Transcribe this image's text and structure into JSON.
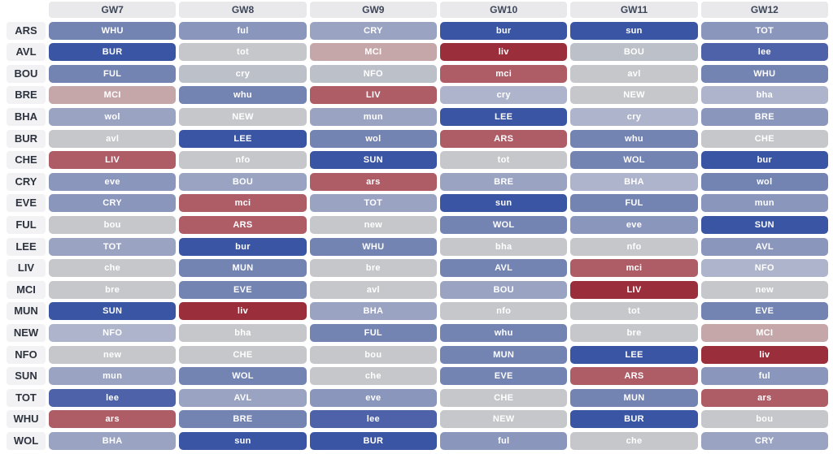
{
  "chart_data": {
    "type": "heatmap",
    "title": "",
    "columns": [
      "GW7",
      "GW8",
      "GW9",
      "GW10",
      "GW11",
      "GW12"
    ],
    "rows": [
      "ARS",
      "AVL",
      "BOU",
      "BRE",
      "BHA",
      "BUR",
      "CHE",
      "CRY",
      "EVE",
      "FUL",
      "LEE",
      "LIV",
      "MCI",
      "MUN",
      "NEW",
      "NFO",
      "SUN",
      "TOT",
      "WHU",
      "WOL"
    ],
    "palette": {
      "b1": "#3a55a3",
      "b2": "#4d62a8",
      "b3": "#7383b2",
      "b4": "#8b96bc",
      "b5": "#9aa4c2",
      "b6": "#aeb4cb",
      "b7": "#bcc0c9",
      "g": "#c6c7ca",
      "p": "#c5a7a9",
      "r2": "#ae5d67",
      "r1": "#9b2e3b"
    },
    "header_bg": "#e9e9ec",
    "label_bg": "#f2f2f4",
    "cells": [
      {
        "team": "ARS",
        "fixtures": [
          {
            "opp": "WHU",
            "difficulty": "b3"
          },
          {
            "opp": "ful",
            "difficulty": "b4"
          },
          {
            "opp": "CRY",
            "difficulty": "b5"
          },
          {
            "opp": "bur",
            "difficulty": "b1"
          },
          {
            "opp": "sun",
            "difficulty": "b1"
          },
          {
            "opp": "TOT",
            "difficulty": "b4"
          }
        ]
      },
      {
        "team": "AVL",
        "fixtures": [
          {
            "opp": "BUR",
            "difficulty": "b1"
          },
          {
            "opp": "tot",
            "difficulty": "g"
          },
          {
            "opp": "MCI",
            "difficulty": "p"
          },
          {
            "opp": "liv",
            "difficulty": "r1"
          },
          {
            "opp": "BOU",
            "difficulty": "b7"
          },
          {
            "opp": "lee",
            "difficulty": "b2"
          }
        ]
      },
      {
        "team": "BOU",
        "fixtures": [
          {
            "opp": "FUL",
            "difficulty": "b3"
          },
          {
            "opp": "cry",
            "difficulty": "b7"
          },
          {
            "opp": "NFO",
            "difficulty": "b7"
          },
          {
            "opp": "mci",
            "difficulty": "r2"
          },
          {
            "opp": "avl",
            "difficulty": "g"
          },
          {
            "opp": "WHU",
            "difficulty": "b3"
          }
        ]
      },
      {
        "team": "BRE",
        "fixtures": [
          {
            "opp": "MCI",
            "difficulty": "p"
          },
          {
            "opp": "whu",
            "difficulty": "b3"
          },
          {
            "opp": "LIV",
            "difficulty": "r2"
          },
          {
            "opp": "cry",
            "difficulty": "b6"
          },
          {
            "opp": "NEW",
            "difficulty": "g"
          },
          {
            "opp": "bha",
            "difficulty": "b6"
          }
        ]
      },
      {
        "team": "BHA",
        "fixtures": [
          {
            "opp": "wol",
            "difficulty": "b5"
          },
          {
            "opp": "NEW",
            "difficulty": "g"
          },
          {
            "opp": "mun",
            "difficulty": "b5"
          },
          {
            "opp": "LEE",
            "difficulty": "b1"
          },
          {
            "opp": "cry",
            "difficulty": "b6"
          },
          {
            "opp": "BRE",
            "difficulty": "b4"
          }
        ]
      },
      {
        "team": "BUR",
        "fixtures": [
          {
            "opp": "avl",
            "difficulty": "g"
          },
          {
            "opp": "LEE",
            "difficulty": "b1"
          },
          {
            "opp": "wol",
            "difficulty": "b3"
          },
          {
            "opp": "ARS",
            "difficulty": "r2"
          },
          {
            "opp": "whu",
            "difficulty": "b3"
          },
          {
            "opp": "CHE",
            "difficulty": "g"
          }
        ]
      },
      {
        "team": "CHE",
        "fixtures": [
          {
            "opp": "LIV",
            "difficulty": "r2"
          },
          {
            "opp": "nfo",
            "difficulty": "g"
          },
          {
            "opp": "SUN",
            "difficulty": "b1"
          },
          {
            "opp": "tot",
            "difficulty": "g"
          },
          {
            "opp": "WOL",
            "difficulty": "b3"
          },
          {
            "opp": "bur",
            "difficulty": "b1"
          }
        ]
      },
      {
        "team": "CRY",
        "fixtures": [
          {
            "opp": "eve",
            "difficulty": "b4"
          },
          {
            "opp": "BOU",
            "difficulty": "b5"
          },
          {
            "opp": "ars",
            "difficulty": "r2"
          },
          {
            "opp": "BRE",
            "difficulty": "b5"
          },
          {
            "opp": "BHA",
            "difficulty": "b6"
          },
          {
            "opp": "wol",
            "difficulty": "b3"
          }
        ]
      },
      {
        "team": "EVE",
        "fixtures": [
          {
            "opp": "CRY",
            "difficulty": "b4"
          },
          {
            "opp": "mci",
            "difficulty": "r2"
          },
          {
            "opp": "TOT",
            "difficulty": "b5"
          },
          {
            "opp": "sun",
            "difficulty": "b1"
          },
          {
            "opp": "FUL",
            "difficulty": "b3"
          },
          {
            "opp": "mun",
            "difficulty": "b4"
          }
        ]
      },
      {
        "team": "FUL",
        "fixtures": [
          {
            "opp": "bou",
            "difficulty": "g"
          },
          {
            "opp": "ARS",
            "difficulty": "r2"
          },
          {
            "opp": "new",
            "difficulty": "g"
          },
          {
            "opp": "WOL",
            "difficulty": "b3"
          },
          {
            "opp": "eve",
            "difficulty": "b4"
          },
          {
            "opp": "SUN",
            "difficulty": "b1"
          }
        ]
      },
      {
        "team": "LEE",
        "fixtures": [
          {
            "opp": "TOT",
            "difficulty": "b5"
          },
          {
            "opp": "bur",
            "difficulty": "b1"
          },
          {
            "opp": "WHU",
            "difficulty": "b3"
          },
          {
            "opp": "bha",
            "difficulty": "g"
          },
          {
            "opp": "nfo",
            "difficulty": "g"
          },
          {
            "opp": "AVL",
            "difficulty": "b4"
          }
        ]
      },
      {
        "team": "LIV",
        "fixtures": [
          {
            "opp": "che",
            "difficulty": "g"
          },
          {
            "opp": "MUN",
            "difficulty": "b3"
          },
          {
            "opp": "bre",
            "difficulty": "g"
          },
          {
            "opp": "AVL",
            "difficulty": "b3"
          },
          {
            "opp": "mci",
            "difficulty": "r2"
          },
          {
            "opp": "NFO",
            "difficulty": "b6"
          }
        ]
      },
      {
        "team": "MCI",
        "fixtures": [
          {
            "opp": "bre",
            "difficulty": "g"
          },
          {
            "opp": "EVE",
            "difficulty": "b3"
          },
          {
            "opp": "avl",
            "difficulty": "g"
          },
          {
            "opp": "BOU",
            "difficulty": "b5"
          },
          {
            "opp": "LIV",
            "difficulty": "r1"
          },
          {
            "opp": "new",
            "difficulty": "g"
          }
        ]
      },
      {
        "team": "MUN",
        "fixtures": [
          {
            "opp": "SUN",
            "difficulty": "b1"
          },
          {
            "opp": "liv",
            "difficulty": "r1"
          },
          {
            "opp": "BHA",
            "difficulty": "b5"
          },
          {
            "opp": "nfo",
            "difficulty": "g"
          },
          {
            "opp": "tot",
            "difficulty": "g"
          },
          {
            "opp": "EVE",
            "difficulty": "b3"
          }
        ]
      },
      {
        "team": "NEW",
        "fixtures": [
          {
            "opp": "NFO",
            "difficulty": "b6"
          },
          {
            "opp": "bha",
            "difficulty": "g"
          },
          {
            "opp": "FUL",
            "difficulty": "b3"
          },
          {
            "opp": "whu",
            "difficulty": "b3"
          },
          {
            "opp": "bre",
            "difficulty": "g"
          },
          {
            "opp": "MCI",
            "difficulty": "p"
          }
        ]
      },
      {
        "team": "NFO",
        "fixtures": [
          {
            "opp": "new",
            "difficulty": "g"
          },
          {
            "opp": "CHE",
            "difficulty": "g"
          },
          {
            "opp": "bou",
            "difficulty": "g"
          },
          {
            "opp": "MUN",
            "difficulty": "b3"
          },
          {
            "opp": "LEE",
            "difficulty": "b1"
          },
          {
            "opp": "liv",
            "difficulty": "r1"
          }
        ]
      },
      {
        "team": "SUN",
        "fixtures": [
          {
            "opp": "mun",
            "difficulty": "b5"
          },
          {
            "opp": "WOL",
            "difficulty": "b3"
          },
          {
            "opp": "che",
            "difficulty": "g"
          },
          {
            "opp": "EVE",
            "difficulty": "b3"
          },
          {
            "opp": "ARS",
            "difficulty": "r2"
          },
          {
            "opp": "ful",
            "difficulty": "b4"
          }
        ]
      },
      {
        "team": "TOT",
        "fixtures": [
          {
            "opp": "lee",
            "difficulty": "b2"
          },
          {
            "opp": "AVL",
            "difficulty": "b5"
          },
          {
            "opp": "eve",
            "difficulty": "b4"
          },
          {
            "opp": "CHE",
            "difficulty": "g"
          },
          {
            "opp": "MUN",
            "difficulty": "b3"
          },
          {
            "opp": "ars",
            "difficulty": "r2"
          }
        ]
      },
      {
        "team": "WHU",
        "fixtures": [
          {
            "opp": "ars",
            "difficulty": "r2"
          },
          {
            "opp": "BRE",
            "difficulty": "b3"
          },
          {
            "opp": "lee",
            "difficulty": "b2"
          },
          {
            "opp": "NEW",
            "difficulty": "g"
          },
          {
            "opp": "BUR",
            "difficulty": "b1"
          },
          {
            "opp": "bou",
            "difficulty": "g"
          }
        ]
      },
      {
        "team": "WOL",
        "fixtures": [
          {
            "opp": "BHA",
            "difficulty": "b5"
          },
          {
            "opp": "sun",
            "difficulty": "b1"
          },
          {
            "opp": "BUR",
            "difficulty": "b1"
          },
          {
            "opp": "ful",
            "difficulty": "b4"
          },
          {
            "opp": "che",
            "difficulty": "g"
          },
          {
            "opp": "CRY",
            "difficulty": "b5"
          }
        ]
      }
    ]
  }
}
